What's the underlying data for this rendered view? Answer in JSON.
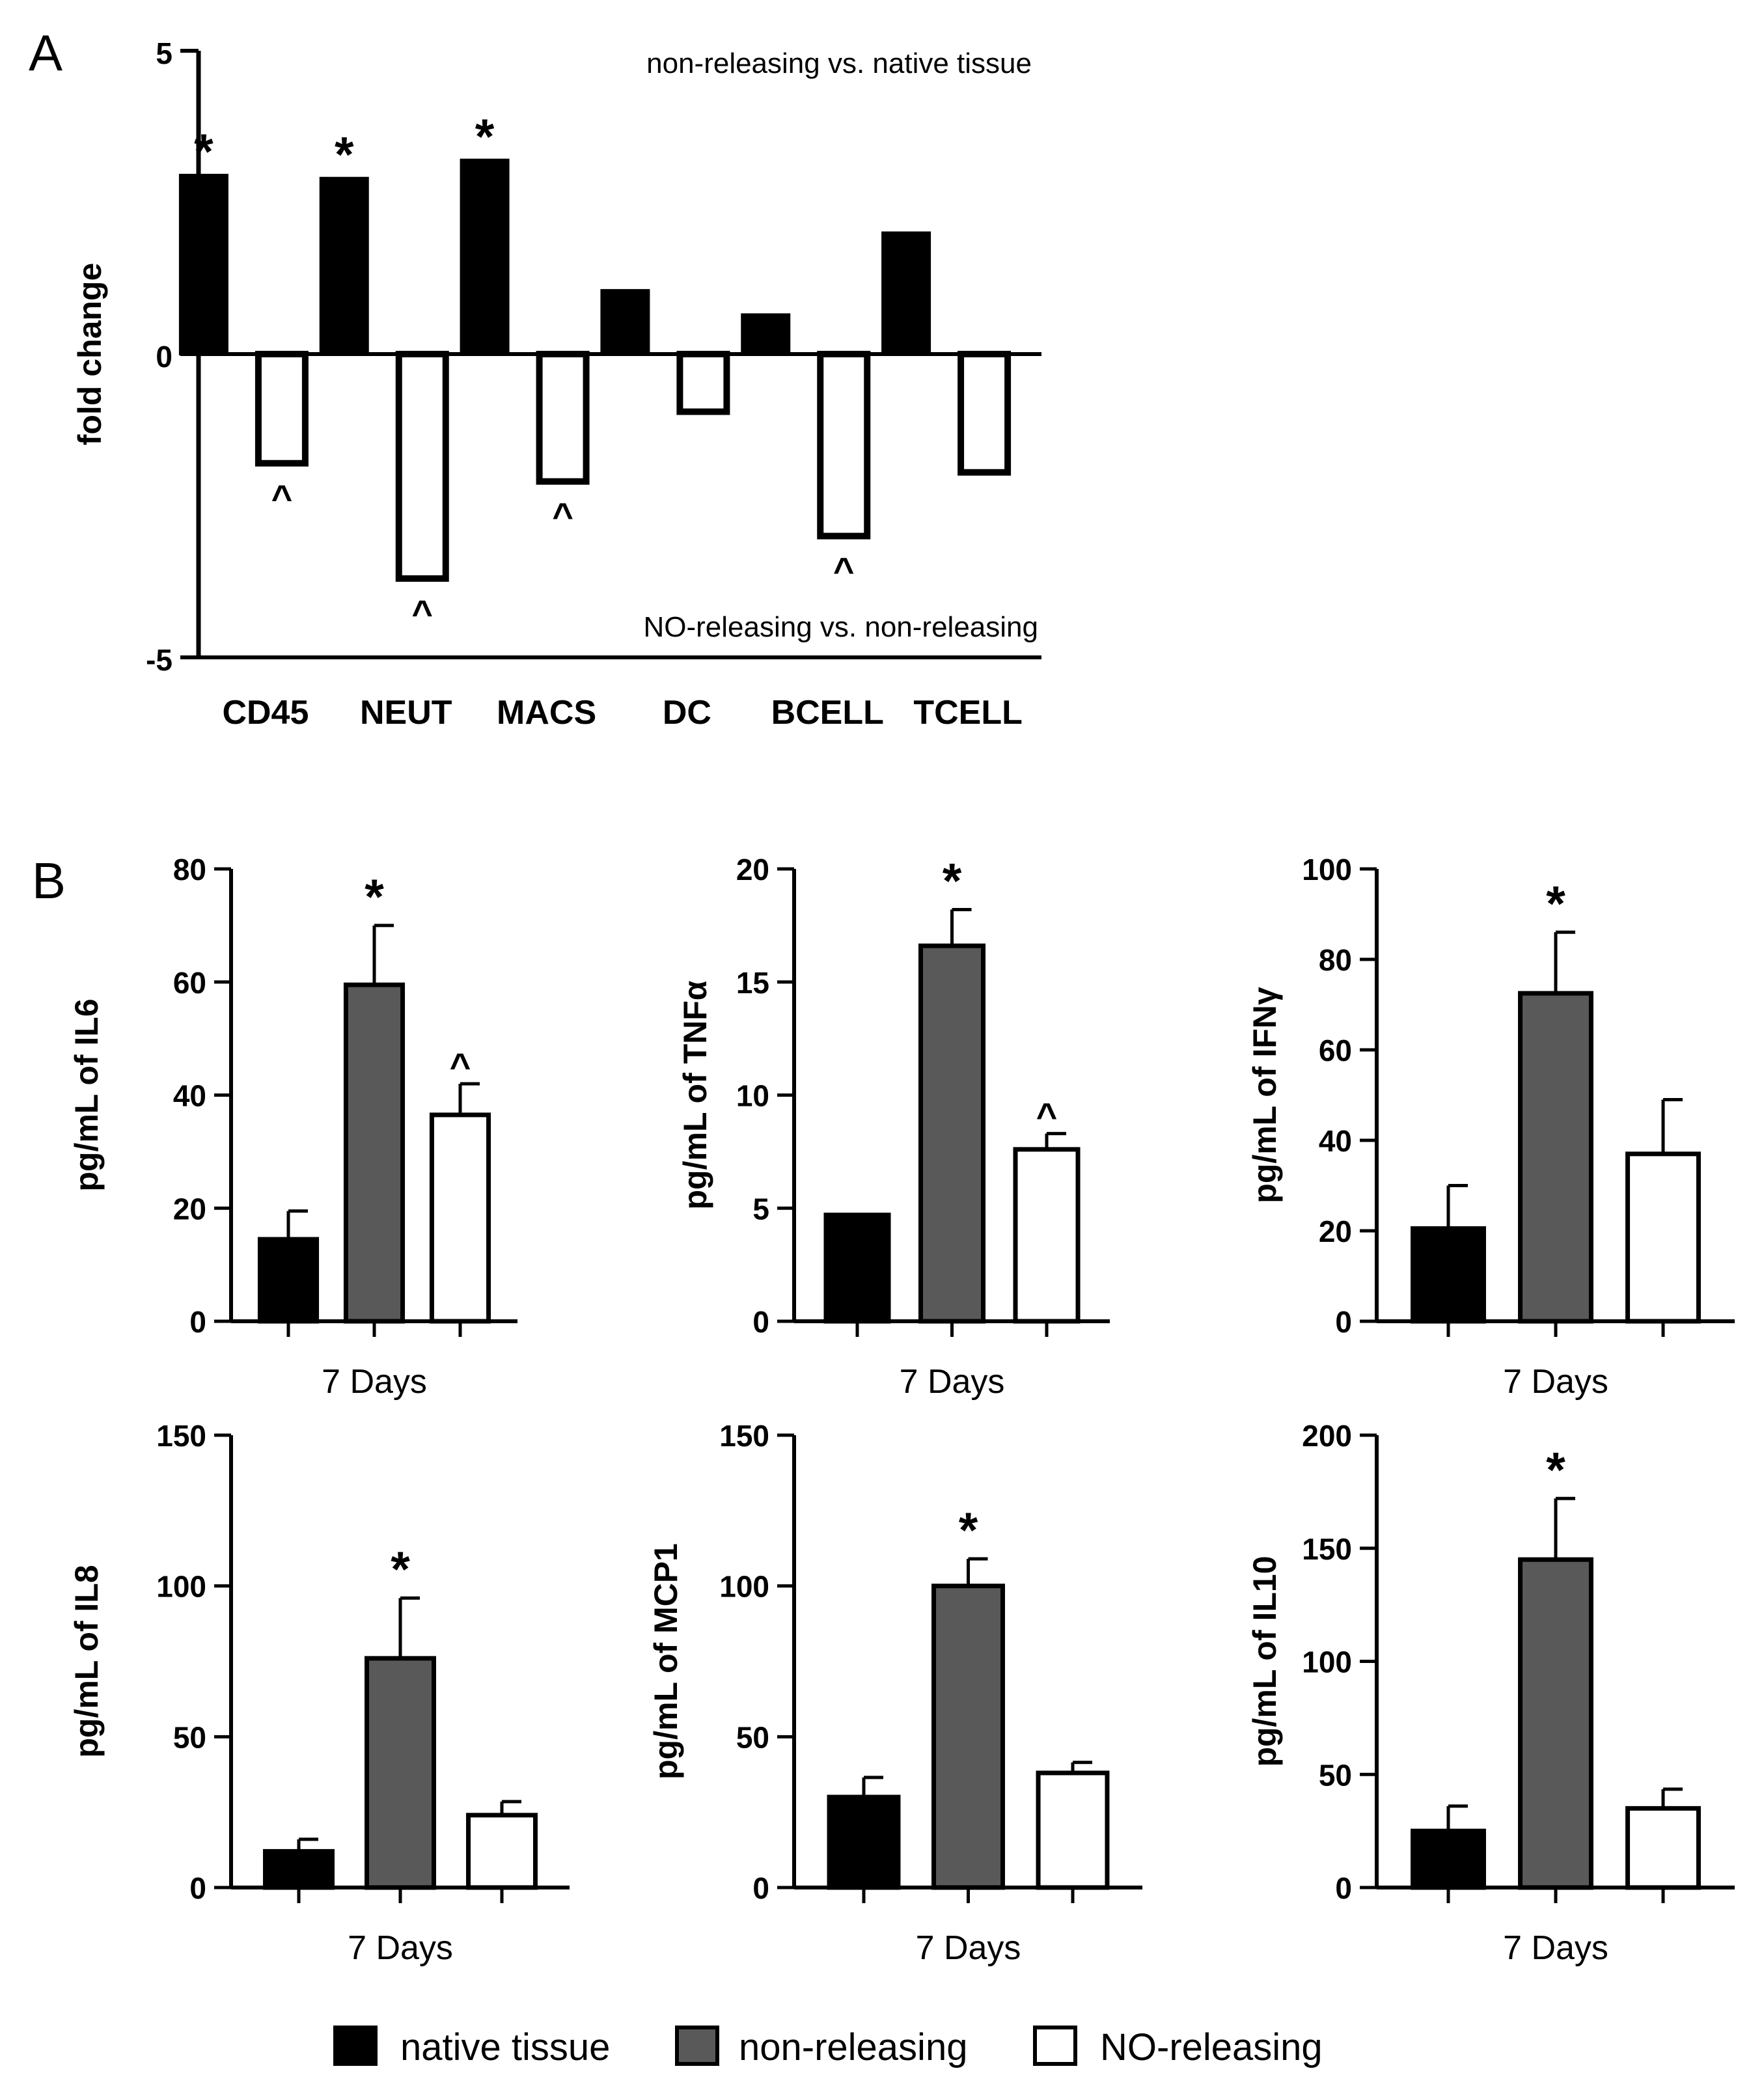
{
  "colors": {
    "native_tissue": "#000000",
    "non_releasing": "#595959",
    "no_releasing": "#ffffff",
    "stroke": "#000000"
  },
  "legend": [
    {
      "label": "native tissue",
      "color": "#000000"
    },
    {
      "label": "non-releasing",
      "color": "#595959"
    },
    {
      "label": "NO-releasing",
      "color": "#ffffff"
    }
  ],
  "chart_data": [
    {
      "panel": "A",
      "type": "bar",
      "ylabel": "fold change",
      "ylim": [
        -5,
        5
      ],
      "yticks": [
        -5,
        0,
        5
      ],
      "categories": [
        "CD45",
        "NEUT",
        "MACS",
        "DC",
        "BCELL",
        "TCELL"
      ],
      "series": [
        {
          "name": "non-releasing vs. native tissue",
          "values": [
            2.95,
            2.9,
            3.2,
            1.05,
            0.65,
            2.0
          ],
          "marks": [
            "*",
            "*",
            "*",
            "",
            "",
            ""
          ]
        },
        {
          "name": "NO-releasing vs. non-releasing",
          "values": [
            -1.8,
            -3.7,
            -2.1,
            -0.95,
            -3.0,
            -1.95
          ],
          "marks": [
            "^",
            "^",
            "^",
            "",
            "^",
            ""
          ]
        }
      ],
      "annotations": [
        "non-releasing vs. native tissue",
        "NO-releasing vs. non-releasing"
      ]
    },
    {
      "panel": "B",
      "type": "bar",
      "xlabel": "7 Days",
      "ylabel": "pg/mL of IL6",
      "ylim": [
        0,
        80
      ],
      "yticks": [
        0,
        20,
        40,
        60,
        80
      ],
      "categories": [
        "native tissue",
        "non-releasing",
        "NO-releasing"
      ],
      "values": [
        14.5,
        59.5,
        36.5
      ],
      "errors": [
        5.0,
        10.5,
        5.5
      ],
      "marks": [
        "",
        "*",
        "^"
      ]
    },
    {
      "type": "bar",
      "xlabel": "7 Days",
      "ylabel": "pg/mL of TNFα",
      "ylim": [
        0,
        20
      ],
      "yticks": [
        0,
        5,
        10,
        15,
        20
      ],
      "categories": [
        "native tissue",
        "non-releasing",
        "NO-releasing"
      ],
      "values": [
        4.7,
        16.6,
        7.6
      ],
      "errors": [
        0,
        1.6,
        0.7
      ],
      "marks": [
        "",
        "*",
        "^"
      ]
    },
    {
      "type": "bar",
      "xlabel": "7 Days",
      "ylabel": "pg/mL of IFNγ",
      "ylim": [
        0,
        100
      ],
      "yticks": [
        0,
        20,
        40,
        60,
        80,
        100
      ],
      "categories": [
        "native tissue",
        "non-releasing",
        "NO-releasing"
      ],
      "values": [
        20.5,
        72.5,
        37.0
      ],
      "errors": [
        9.5,
        13.5,
        12.0
      ],
      "marks": [
        "",
        "*",
        ""
      ]
    },
    {
      "type": "bar",
      "xlabel": "7 Days",
      "ylabel": "pg/mL of IL8",
      "ylim": [
        0,
        150
      ],
      "yticks": [
        0,
        50,
        100,
        150
      ],
      "categories": [
        "native tissue",
        "non-releasing",
        "NO-releasing"
      ],
      "values": [
        12,
        76,
        24
      ],
      "errors": [
        4,
        20,
        4.5
      ],
      "marks": [
        "",
        "*",
        ""
      ]
    },
    {
      "type": "bar",
      "xlabel": "7 Days",
      "ylabel": "pg/mL of MCP1",
      "ylim": [
        0,
        150
      ],
      "yticks": [
        0,
        50,
        100,
        150
      ],
      "categories": [
        "native tissue",
        "non-releasing",
        "NO-releasing"
      ],
      "values": [
        30,
        100,
        38
      ],
      "errors": [
        6.5,
        9,
        3.5
      ],
      "marks": [
        "",
        "*",
        ""
      ]
    },
    {
      "type": "bar",
      "xlabel": "7 Days",
      "ylabel": "pg/mL of IL10",
      "ylim": [
        0,
        200
      ],
      "yticks": [
        0,
        50,
        100,
        150,
        200
      ],
      "categories": [
        "native tissue",
        "non-releasing",
        "NO-releasing"
      ],
      "values": [
        25,
        145,
        35
      ],
      "errors": [
        11,
        27,
        8.5
      ],
      "marks": [
        "",
        "*",
        ""
      ]
    }
  ]
}
